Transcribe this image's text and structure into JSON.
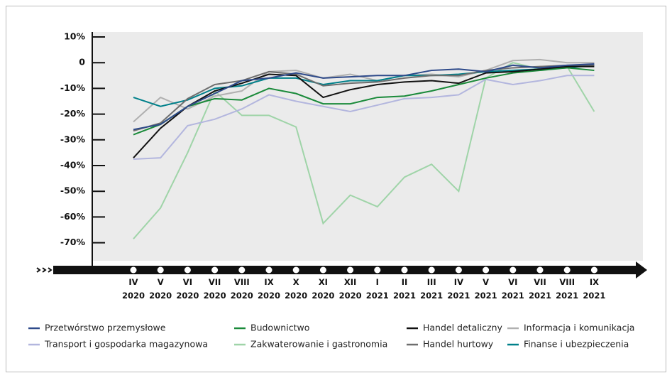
{
  "chart_data": {
    "type": "line",
    "categories": [
      "IV\n2020",
      "V\n2020",
      "VI\n2020",
      "VII\n2020",
      "VIII\n2020",
      "IX\n2020",
      "X\n2020",
      "XI\n2020",
      "XII\n2020",
      "I\n2021",
      "II\n2021",
      "III\n2021",
      "IV\n2021",
      "V\n2021",
      "VI\n2021",
      "VII\n2021",
      "VIII\n2021",
      "IX\n2021"
    ],
    "ylim": [
      -75,
      10
    ],
    "yticks": [
      {
        "value": 10,
        "label": "10%"
      },
      0,
      {
        "value": -10,
        "label": "-10%"
      },
      {
        "value": -20,
        "label": "-20%"
      },
      {
        "value": -30,
        "label": "-30%"
      },
      {
        "value": -40,
        "label": "-40%"
      },
      {
        "value": -50,
        "label": "-50%"
      },
      {
        "value": -60,
        "label": "-60%"
      },
      {
        "value": -70,
        "label": "-70%"
      }
    ],
    "series": [
      {
        "name": "Zakwaterowanie i gastronomia",
        "color": "#9fd4a8",
        "values": [
          -68.5,
          -56.5,
          -35,
          -11,
          -20.5,
          -20.5,
          -25,
          -62.5,
          -51.5,
          -56,
          -44.5,
          -39.5,
          -50,
          -6,
          0,
          -2.5,
          -1.5,
          -19
        ]
      },
      {
        "name": "Transport i gospodarka magazynowa",
        "color": "#b3b6de",
        "values": [
          -37.5,
          -37,
          -24.5,
          -22,
          -18,
          -12.5,
          -15,
          -17,
          -19,
          -16.5,
          -14,
          -13.5,
          -12.5,
          -6.5,
          -8.5,
          -7,
          -5,
          -5
        ]
      },
      {
        "name": "Informacja i komunikacja",
        "color": "#b0b0b0",
        "values": [
          -23,
          -13.5,
          -18,
          -13,
          -11,
          -3.5,
          -3,
          -6,
          -4.5,
          -7,
          -5,
          -4.5,
          -5.5,
          -3,
          0.8,
          1.2,
          0,
          0
        ]
      },
      {
        "name": "Finanse i ubezpieczenia",
        "color": "#00808a",
        "values": [
          -13.5,
          -17,
          -14.5,
          -10,
          -9,
          -6,
          -6,
          -8.5,
          -7,
          -7,
          -5,
          -5,
          -4.5,
          -3.5,
          -3,
          -2.5,
          -2,
          -1
        ]
      },
      {
        "name": "Handel hurtowy",
        "color": "#6e6e6e",
        "values": [
          -26.5,
          -23.5,
          -14,
          -8.5,
          -7,
          -3.5,
          -4.5,
          -9,
          -8,
          -7.5,
          -6,
          -5,
          -5,
          -3,
          -2,
          -1.5,
          -1,
          -1
        ]
      },
      {
        "name": "Budownictwo",
        "color": "#1a8a3a",
        "values": [
          -28,
          -24,
          -17,
          -14,
          -14.5,
          -10,
          -12,
          -16,
          -16,
          -13.5,
          -13,
          -11,
          -8.5,
          -6,
          -4,
          -3,
          -2,
          -3
        ]
      },
      {
        "name": "Handel detaliczny",
        "color": "#111111",
        "values": [
          -37,
          -25.5,
          -17,
          -11,
          -8,
          -4.5,
          -5,
          -13.5,
          -10.5,
          -8.5,
          -7.5,
          -7,
          -8,
          -4,
          -3.5,
          -2.5,
          -1.5,
          -1.5
        ]
      },
      {
        "name": "Przetwórstwo przemysłowe",
        "color": "#2e4a8a",
        "values": [
          -26,
          -24,
          -17,
          -12,
          -7,
          -6,
          -4,
          -6,
          -5.5,
          -5,
          -5,
          -3,
          -2.5,
          -3.5,
          -1,
          -2,
          -1,
          -0.5
        ]
      }
    ]
  }
}
